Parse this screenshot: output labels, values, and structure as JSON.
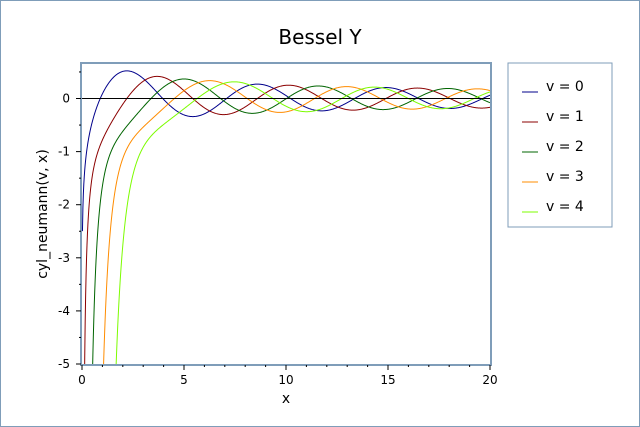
{
  "chart_data": {
    "type": "line",
    "title": "Bessel Y",
    "xlabel": "x",
    "ylabel": "cyl_neumann(v, x)",
    "xlim": [
      0,
      20
    ],
    "ylim": [
      -5,
      0.65
    ],
    "x_ticks": [
      0,
      5,
      10,
      15,
      20
    ],
    "y_ticks": [
      0,
      -1,
      -2,
      -3,
      -4,
      -5
    ],
    "grid": false,
    "legend_position": "right",
    "background": "#ffffff",
    "plot_area_color": "#ffffff",
    "frame_color": "#7f9db9",
    "series": [
      {
        "name": "v = 0",
        "order": 0,
        "color": "#00008b"
      },
      {
        "name": "v = 1",
        "order": 1,
        "color": "#8b0000"
      },
      {
        "name": "v = 2",
        "order": 2,
        "color": "#006400"
      },
      {
        "name": "v = 3",
        "order": 3,
        "color": "#ff8c00"
      },
      {
        "name": "v = 4",
        "order": 4,
        "color": "#7cfc00"
      }
    ]
  }
}
